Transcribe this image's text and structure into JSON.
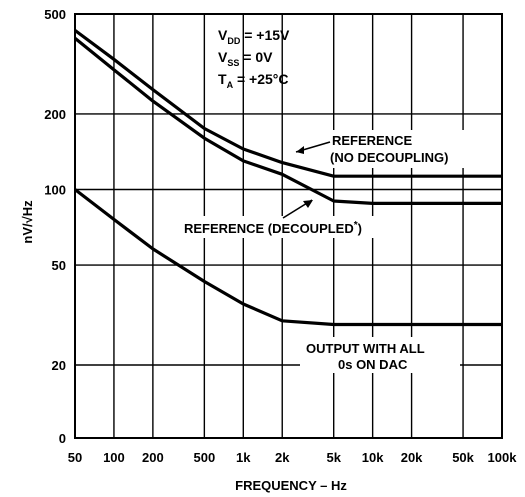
{
  "chart_data": {
    "type": "line",
    "x_scale": "log",
    "y_scale": "log",
    "grid": true,
    "xlabel": "FREQUENCY – Hz",
    "ylabel": "nV/√Hz",
    "x_ticks": [
      {
        "value": 50,
        "label": "50"
      },
      {
        "value": 100,
        "label": "100"
      },
      {
        "value": 200,
        "label": "200"
      },
      {
        "value": 500,
        "label": "500"
      },
      {
        "value": 1000,
        "label": "1k"
      },
      {
        "value": 2000,
        "label": "2k"
      },
      {
        "value": 5000,
        "label": "5k"
      },
      {
        "value": 10000,
        "label": "10k"
      },
      {
        "value": 20000,
        "label": "20k"
      },
      {
        "value": 50000,
        "label": "50k"
      },
      {
        "value": 100000,
        "label": "100k"
      }
    ],
    "y_ticks": [
      {
        "value": 500,
        "label": "500"
      },
      {
        "value": 200,
        "label": "200"
      },
      {
        "value": 100,
        "label": "100"
      },
      {
        "value": 50,
        "label": "50"
      },
      {
        "value": 20,
        "label": "20"
      },
      {
        "value": 0,
        "label": "0"
      }
    ],
    "conditions": {
      "vdd": {
        "main": "V",
        "sub": "DD",
        "rest": " = +15V"
      },
      "vss": {
        "main": "V",
        "sub": "SS",
        "rest": " = 0V"
      },
      "ta": {
        "main": "T",
        "sub": "A",
        "rest": " = +25°C"
      }
    },
    "series": [
      {
        "name": "REFERENCE (NO DECOUPLING)",
        "points": [
          [
            50,
            430
          ],
          [
            100,
            330
          ],
          [
            200,
            250
          ],
          [
            500,
            175
          ],
          [
            1000,
            145
          ],
          [
            2000,
            128
          ],
          [
            5000,
            113
          ],
          [
            10000,
            113
          ],
          [
            100000,
            113
          ]
        ]
      },
      {
        "name": "REFERENCE (DECOUPLED*)",
        "points": [
          [
            50,
            400
          ],
          [
            100,
            300
          ],
          [
            200,
            225
          ],
          [
            500,
            160
          ],
          [
            1000,
            130
          ],
          [
            2000,
            115
          ],
          [
            5000,
            90
          ],
          [
            10000,
            88
          ],
          [
            100000,
            88
          ]
        ]
      },
      {
        "name": "OUTPUT WITH ALL 0s ON DAC",
        "points": [
          [
            50,
            100
          ],
          [
            100,
            76
          ],
          [
            200,
            58
          ],
          [
            500,
            43
          ],
          [
            1000,
            35
          ],
          [
            2000,
            30
          ],
          [
            5000,
            29
          ],
          [
            10000,
            29
          ],
          [
            100000,
            29
          ]
        ]
      }
    ],
    "annotations": {
      "no_decoupling": [
        "REFERENCE",
        "(NO DECOUPLING)"
      ],
      "decoupled": {
        "text": "REFERENCE (DECOUPLED",
        "sup": "*",
        "close": ")"
      },
      "output": [
        "OUTPUT WITH ALL",
        "0s ON DAC"
      ]
    }
  }
}
